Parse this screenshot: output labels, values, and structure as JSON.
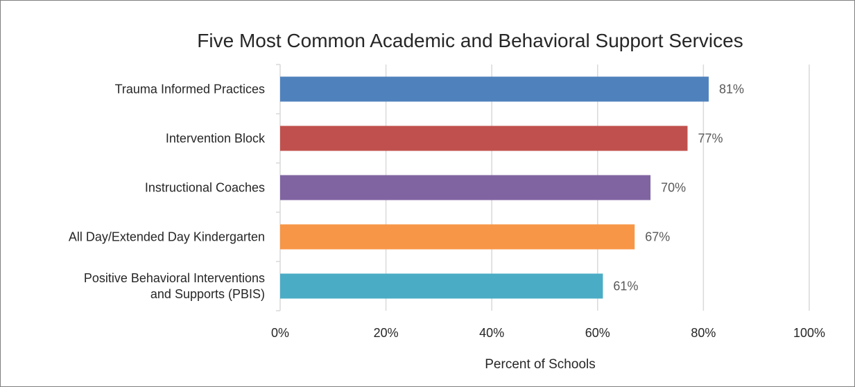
{
  "chart_data": {
    "type": "bar",
    "orientation": "horizontal",
    "title": "Five Most Common Academic and Behavioral Support Services",
    "xlabel": "Percent of Schools",
    "ylabel": "",
    "xlim": [
      0,
      100
    ],
    "x_ticks": [
      "0%",
      "20%",
      "40%",
      "60%",
      "80%",
      "100%"
    ],
    "grid": true,
    "legend": "none",
    "categories": [
      [
        "Trauma Informed Practices"
      ],
      [
        "Intervention Block"
      ],
      [
        "Instructional Coaches"
      ],
      [
        "All Day/Extended Day Kindergarten"
      ],
      [
        "Positive Behavioral Interventions",
        "and Supports (PBIS)"
      ]
    ],
    "values": [
      81,
      77,
      70,
      67,
      61
    ],
    "value_labels": [
      "81%",
      "77%",
      "70%",
      "67%",
      "61%"
    ],
    "colors": [
      "#4f81bd",
      "#c0504d",
      "#8064a2",
      "#f79646",
      "#4bacc6"
    ]
  }
}
